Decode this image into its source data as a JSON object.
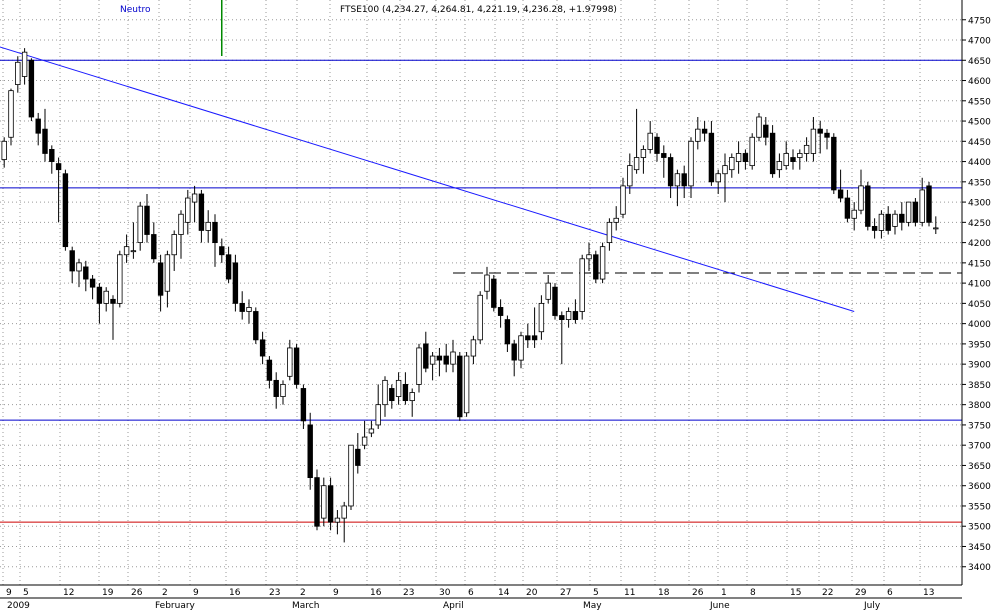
{
  "header": {
    "indicator_label": "Neutro",
    "title": "FTSE100 (4,234.27, 4,264.81, 4,221.19, 4,236.28, +1.97998)"
  },
  "colors": {
    "grid": "#9a9a9a",
    "support_resistance": "#0000cc",
    "trendline": "#1a1aff",
    "low_support": "#cc0000",
    "candle_up": "#ffffff",
    "candle_down": "#000000",
    "indicator_bar": "#008800",
    "dashed_level": "#000000"
  },
  "chart_data": {
    "type": "candlestick",
    "title": "FTSE100 (4,234.27, 4,264.81, 4,221.19, 4,236.28, +1.97998)",
    "xlabel": "",
    "ylabel": "",
    "ylim": [
      3350,
      4800
    ],
    "y_ticks": [
      3400,
      3450,
      3500,
      3550,
      3600,
      3650,
      3700,
      3750,
      3800,
      3850,
      3900,
      3950,
      4000,
      4050,
      4100,
      4150,
      4200,
      4250,
      4300,
      4350,
      4400,
      4450,
      4500,
      4550,
      4600,
      4650,
      4700,
      4750
    ],
    "x_tick_labels": [
      "9",
      "5",
      "12",
      "19",
      "26",
      "2",
      "9",
      "16",
      "23",
      "2",
      "9",
      "16",
      "23",
      "30",
      "6",
      "14",
      "20",
      "27",
      "5",
      "11",
      "18",
      "26",
      "1",
      "8",
      "15",
      "22",
      "29",
      "6",
      "13"
    ],
    "month_labels": [
      "2009",
      "February",
      "March",
      "April",
      "May",
      "June",
      "July"
    ],
    "horizontal_lines": [
      {
        "type": "resistance",
        "value": 4650
      },
      {
        "type": "resistance",
        "value": 4335
      },
      {
        "type": "resistance",
        "value": 4125,
        "style": "dashed"
      },
      {
        "type": "support",
        "value": 3762
      },
      {
        "type": "support",
        "value": 3510
      }
    ],
    "trendline": {
      "from": {
        "bar": -2,
        "value": 4690
      },
      "to": {
        "bar": 125,
        "value": 4030
      }
    },
    "candles": [
      {
        "o": 4405,
        "h": 4460,
        "l": 4385,
        "c": 4450
      },
      {
        "o": 4460,
        "h": 4580,
        "l": 4440,
        "c": 4575
      },
      {
        "o": 4590,
        "h": 4660,
        "l": 4570,
        "c": 4645
      },
      {
        "o": 4610,
        "h": 4680,
        "l": 4590,
        "c": 4670
      },
      {
        "o": 4650,
        "h": 4655,
        "l": 4500,
        "c": 4510
      },
      {
        "o": 4505,
        "h": 4520,
        "l": 4440,
        "c": 4470
      },
      {
        "o": 4480,
        "h": 4530,
        "l": 4400,
        "c": 4420
      },
      {
        "o": 4430,
        "h": 4440,
        "l": 4370,
        "c": 4400
      },
      {
        "o": 4395,
        "h": 4410,
        "l": 4250,
        "c": 4380
      },
      {
        "o": 4370,
        "h": 4380,
        "l": 4180,
        "c": 4190
      },
      {
        "o": 4180,
        "h": 4190,
        "l": 4100,
        "c": 4130
      },
      {
        "o": 4130,
        "h": 4160,
        "l": 4090,
        "c": 4150
      },
      {
        "o": 4140,
        "h": 4155,
        "l": 4080,
        "c": 4110
      },
      {
        "o": 4110,
        "h": 4120,
        "l": 4060,
        "c": 4090
      },
      {
        "o": 4090,
        "h": 4100,
        "l": 4000,
        "c": 4050
      },
      {
        "o": 4050,
        "h": 4090,
        "l": 4030,
        "c": 4080
      },
      {
        "o": 4060,
        "h": 4070,
        "l": 3960,
        "c": 4050
      },
      {
        "o": 4050,
        "h": 4180,
        "l": 4040,
        "c": 4170
      },
      {
        "o": 4170,
        "h": 4220,
        "l": 4150,
        "c": 4190
      },
      {
        "o": 4180,
        "h": 4250,
        "l": 4160,
        "c": 4180
      },
      {
        "o": 4200,
        "h": 4300,
        "l": 4180,
        "c": 4290
      },
      {
        "o": 4290,
        "h": 4320,
        "l": 4200,
        "c": 4220
      },
      {
        "o": 4220,
        "h": 4250,
        "l": 4150,
        "c": 4160
      },
      {
        "o": 4150,
        "h": 4170,
        "l": 4030,
        "c": 4070
      },
      {
        "o": 4080,
        "h": 4180,
        "l": 4040,
        "c": 4170
      },
      {
        "o": 4170,
        "h": 4230,
        "l": 4130,
        "c": 4220
      },
      {
        "o": 4220,
        "h": 4280,
        "l": 4160,
        "c": 4270
      },
      {
        "o": 4250,
        "h": 4330,
        "l": 4220,
        "c": 4310
      },
      {
        "o": 4300,
        "h": 4340,
        "l": 4250,
        "c": 4320
      },
      {
        "o": 4320,
        "h": 4330,
        "l": 4200,
        "c": 4230
      },
      {
        "o": 4230,
        "h": 4280,
        "l": 4200,
        "c": 4250
      },
      {
        "o": 4250,
        "h": 4270,
        "l": 4140,
        "c": 4200
      },
      {
        "o": 4190,
        "h": 4210,
        "l": 4150,
        "c": 4170
      },
      {
        "o": 4170,
        "h": 4190,
        "l": 4100,
        "c": 4110
      },
      {
        "o": 4150,
        "h": 4170,
        "l": 4030,
        "c": 4050
      },
      {
        "o": 4050,
        "h": 4080,
        "l": 4010,
        "c": 4030
      },
      {
        "o": 4030,
        "h": 4060,
        "l": 4000,
        "c": 4040
      },
      {
        "o": 4030,
        "h": 4040,
        "l": 3950,
        "c": 3960
      },
      {
        "o": 3960,
        "h": 3980,
        "l": 3900,
        "c": 3920
      },
      {
        "o": 3910,
        "h": 3920,
        "l": 3840,
        "c": 3860
      },
      {
        "o": 3860,
        "h": 3880,
        "l": 3790,
        "c": 3820
      },
      {
        "o": 3820,
        "h": 3860,
        "l": 3800,
        "c": 3850
      },
      {
        "o": 3870,
        "h": 3960,
        "l": 3860,
        "c": 3940
      },
      {
        "o": 3940,
        "h": 3950,
        "l": 3840,
        "c": 3850
      },
      {
        "o": 3840,
        "h": 3850,
        "l": 3740,
        "c": 3760
      },
      {
        "o": 3750,
        "h": 3780,
        "l": 3590,
        "c": 3620
      },
      {
        "o": 3620,
        "h": 3640,
        "l": 3490,
        "c": 3500
      },
      {
        "o": 3520,
        "h": 3620,
        "l": 3500,
        "c": 3600
      },
      {
        "o": 3600,
        "h": 3620,
        "l": 3490,
        "c": 3510
      },
      {
        "o": 3510,
        "h": 3540,
        "l": 3480,
        "c": 3520
      },
      {
        "o": 3520,
        "h": 3560,
        "l": 3460,
        "c": 3550
      },
      {
        "o": 3550,
        "h": 3700,
        "l": 3540,
        "c": 3700
      },
      {
        "o": 3690,
        "h": 3730,
        "l": 3630,
        "c": 3650
      },
      {
        "o": 3700,
        "h": 3760,
        "l": 3690,
        "c": 3720
      },
      {
        "o": 3730,
        "h": 3760,
        "l": 3720,
        "c": 3740
      },
      {
        "o": 3750,
        "h": 3850,
        "l": 3740,
        "c": 3800
      },
      {
        "o": 3800,
        "h": 3870,
        "l": 3770,
        "c": 3860
      },
      {
        "o": 3840,
        "h": 3850,
        "l": 3790,
        "c": 3810
      },
      {
        "o": 3820,
        "h": 3880,
        "l": 3800,
        "c": 3860
      },
      {
        "o": 3850,
        "h": 3880,
        "l": 3800,
        "c": 3810
      },
      {
        "o": 3810,
        "h": 3840,
        "l": 3770,
        "c": 3830
      },
      {
        "o": 3850,
        "h": 3950,
        "l": 3830,
        "c": 3940
      },
      {
        "o": 3950,
        "h": 3980,
        "l": 3880,
        "c": 3890
      },
      {
        "o": 3900,
        "h": 3930,
        "l": 3860,
        "c": 3920
      },
      {
        "o": 3920,
        "h": 3940,
        "l": 3870,
        "c": 3910
      },
      {
        "o": 3920,
        "h": 3950,
        "l": 3880,
        "c": 3900
      },
      {
        "o": 3900,
        "h": 3960,
        "l": 3880,
        "c": 3930
      },
      {
        "o": 3920,
        "h": 3930,
        "l": 3760,
        "c": 3770
      },
      {
        "o": 3780,
        "h": 3930,
        "l": 3770,
        "c": 3920
      },
      {
        "o": 3920,
        "h": 3970,
        "l": 3900,
        "c": 3960
      },
      {
        "o": 3960,
        "h": 4080,
        "l": 3950,
        "c": 4070
      },
      {
        "o": 4080,
        "h": 4140,
        "l": 4060,
        "c": 4120
      },
      {
        "o": 4110,
        "h": 4120,
        "l": 4030,
        "c": 4040
      },
      {
        "o": 4040,
        "h": 4060,
        "l": 3990,
        "c": 4020
      },
      {
        "o": 4010,
        "h": 4020,
        "l": 3930,
        "c": 3950
      },
      {
        "o": 3950,
        "h": 3960,
        "l": 3870,
        "c": 3910
      },
      {
        "o": 3910,
        "h": 3980,
        "l": 3890,
        "c": 3970
      },
      {
        "o": 3970,
        "h": 4000,
        "l": 3940,
        "c": 3960
      },
      {
        "o": 3970,
        "h": 4040,
        "l": 3940,
        "c": 3960
      },
      {
        "o": 3980,
        "h": 4070,
        "l": 3960,
        "c": 4050
      },
      {
        "o": 4060,
        "h": 4120,
        "l": 4050,
        "c": 4100
      },
      {
        "o": 4090,
        "h": 4100,
        "l": 4010,
        "c": 4020
      },
      {
        "o": 4020,
        "h": 4030,
        "l": 3900,
        "c": 4010
      },
      {
        "o": 4010,
        "h": 4040,
        "l": 3990,
        "c": 4030
      },
      {
        "o": 4030,
        "h": 4060,
        "l": 4000,
        "c": 4010
      },
      {
        "o": 4030,
        "h": 4170,
        "l": 4010,
        "c": 4160
      },
      {
        "o": 4160,
        "h": 4200,
        "l": 4130,
        "c": 4170
      },
      {
        "o": 4170,
        "h": 4180,
        "l": 4100,
        "c": 4110
      },
      {
        "o": 4110,
        "h": 4200,
        "l": 4100,
        "c": 4190
      },
      {
        "o": 4200,
        "h": 4260,
        "l": 4180,
        "c": 4250
      },
      {
        "o": 4250,
        "h": 4290,
        "l": 4230,
        "c": 4260
      },
      {
        "o": 4270,
        "h": 4360,
        "l": 4260,
        "c": 4340
      },
      {
        "o": 4340,
        "h": 4420,
        "l": 4320,
        "c": 4390
      },
      {
        "o": 4380,
        "h": 4530,
        "l": 4370,
        "c": 4410
      },
      {
        "o": 4410,
        "h": 4440,
        "l": 4370,
        "c": 4430
      },
      {
        "o": 4430,
        "h": 4500,
        "l": 4420,
        "c": 4470
      },
      {
        "o": 4460,
        "h": 4470,
        "l": 4400,
        "c": 4420
      },
      {
        "o": 4420,
        "h": 4440,
        "l": 4360,
        "c": 4410
      },
      {
        "o": 4410,
        "h": 4420,
        "l": 4310,
        "c": 4340
      },
      {
        "o": 4340,
        "h": 4380,
        "l": 4290,
        "c": 4370
      },
      {
        "o": 4370,
        "h": 4390,
        "l": 4310,
        "c": 4340
      },
      {
        "o": 4340,
        "h": 4460,
        "l": 4310,
        "c": 4450
      },
      {
        "o": 4450,
        "h": 4510,
        "l": 4430,
        "c": 4480
      },
      {
        "o": 4480,
        "h": 4500,
        "l": 4450,
        "c": 4470
      },
      {
        "o": 4470,
        "h": 4500,
        "l": 4340,
        "c": 4350
      },
      {
        "o": 4350,
        "h": 4380,
        "l": 4320,
        "c": 4370
      },
      {
        "o": 4370,
        "h": 4420,
        "l": 4300,
        "c": 4390
      },
      {
        "o": 4380,
        "h": 4420,
        "l": 4360,
        "c": 4410
      },
      {
        "o": 4400,
        "h": 4450,
        "l": 4370,
        "c": 4420
      },
      {
        "o": 4420,
        "h": 4430,
        "l": 4380,
        "c": 4400
      },
      {
        "o": 4390,
        "h": 4470,
        "l": 4380,
        "c": 4460
      },
      {
        "o": 4460,
        "h": 4520,
        "l": 4450,
        "c": 4510
      },
      {
        "o": 4490,
        "h": 4510,
        "l": 4440,
        "c": 4460
      },
      {
        "o": 4470,
        "h": 4490,
        "l": 4360,
        "c": 4370
      },
      {
        "o": 4380,
        "h": 4420,
        "l": 4360,
        "c": 4400
      },
      {
        "o": 4390,
        "h": 4450,
        "l": 4380,
        "c": 4420
      },
      {
        "o": 4410,
        "h": 4430,
        "l": 4380,
        "c": 4400
      },
      {
        "o": 4410,
        "h": 4430,
        "l": 4380,
        "c": 4420
      },
      {
        "o": 4420,
        "h": 4460,
        "l": 4400,
        "c": 4440
      },
      {
        "o": 4420,
        "h": 4510,
        "l": 4400,
        "c": 4480
      },
      {
        "o": 4480,
        "h": 4500,
        "l": 4420,
        "c": 4470
      },
      {
        "o": 4470,
        "h": 4480,
        "l": 4430,
        "c": 4460
      },
      {
        "o": 4460,
        "h": 4470,
        "l": 4320,
        "c": 4330
      },
      {
        "o": 4330,
        "h": 4380,
        "l": 4300,
        "c": 4310
      },
      {
        "o": 4310,
        "h": 4330,
        "l": 4250,
        "c": 4260
      },
      {
        "o": 4260,
        "h": 4300,
        "l": 4230,
        "c": 4280
      },
      {
        "o": 4280,
        "h": 4380,
        "l": 4270,
        "c": 4340
      },
      {
        "o": 4340,
        "h": 4350,
        "l": 4230,
        "c": 4240
      },
      {
        "o": 4240,
        "h": 4260,
        "l": 4210,
        "c": 4230
      },
      {
        "o": 4230,
        "h": 4280,
        "l": 4210,
        "c": 4270
      },
      {
        "o": 4270,
        "h": 4290,
        "l": 4220,
        "c": 4230
      },
      {
        "o": 4240,
        "h": 4280,
        "l": 4220,
        "c": 4270
      },
      {
        "o": 4270,
        "h": 4300,
        "l": 4230,
        "c": 4250
      },
      {
        "o": 4250,
        "h": 4300,
        "l": 4240,
        "c": 4300
      },
      {
        "o": 4300,
        "h": 4310,
        "l": 4240,
        "c": 4250
      },
      {
        "o": 4250,
        "h": 4360,
        "l": 4240,
        "c": 4330
      },
      {
        "o": 4340,
        "h": 4350,
        "l": 4240,
        "c": 4250
      },
      {
        "o": 4234.27,
        "h": 4264.81,
        "l": 4221.19,
        "c": 4236.28
      }
    ]
  }
}
